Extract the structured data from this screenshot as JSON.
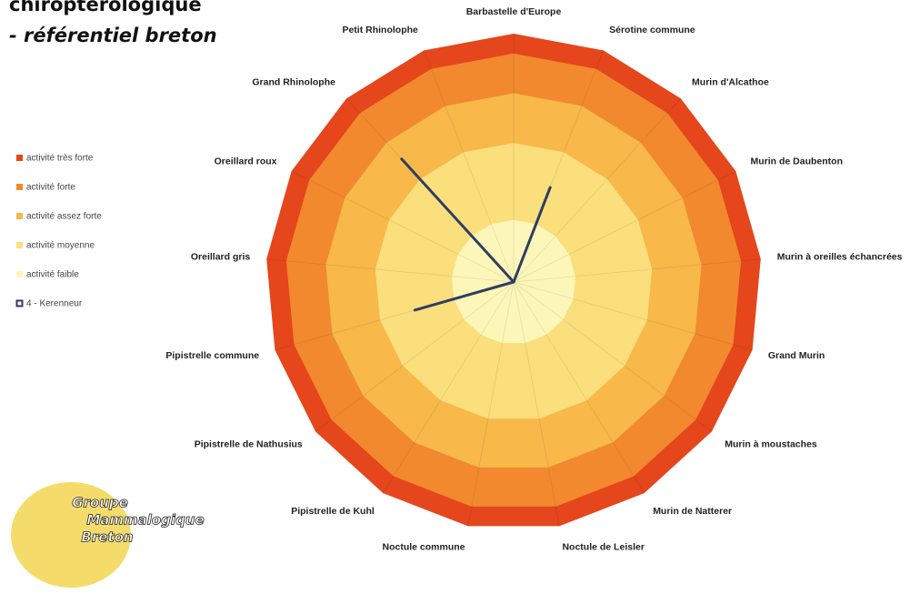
{
  "chart_data": {
    "type": "radar",
    "title": "chiroptérologique",
    "subtitle": "- référentiel breton",
    "categories": [
      "Barbastelle d'Europe",
      "Sérotine commune",
      "Murin d'Alcathoe",
      "Murin de Daubenton",
      "Murin à oreilles échancrées",
      "Grand Murin",
      "Murin à moustaches",
      "Murin de Natterer",
      "Noctule de Leisler",
      "Noctule commune",
      "Pipistrelle de Kuhl",
      "Pipistrelle de Nathusius",
      "Pipistrelle commune",
      "Oreillard gris",
      "Oreillard roux",
      "Grand Rhinolophe",
      "Petit Rhinolophe"
    ],
    "rlim": [
      0,
      5
    ],
    "series": [
      {
        "name": "activité très forte",
        "color": "#e5461b",
        "fill": true,
        "values": [
          5,
          5,
          5,
          5,
          5,
          5,
          5,
          5,
          5,
          5,
          5,
          5,
          5,
          5,
          5,
          5,
          5
        ]
      },
      {
        "name": "activité forte",
        "color": "#f2892e",
        "fill": true,
        "values": [
          4.6,
          4.6,
          4.6,
          4.6,
          4.6,
          4.6,
          4.6,
          4.6,
          4.6,
          4.6,
          4.6,
          4.6,
          4.6,
          4.6,
          4.6,
          4.6,
          4.6
        ]
      },
      {
        "name": "activité assez forte",
        "color": "#f8b84a",
        "fill": true,
        "values": [
          3.8,
          3.8,
          3.8,
          3.8,
          3.8,
          3.8,
          3.8,
          3.8,
          3.8,
          3.8,
          3.8,
          3.8,
          3.8,
          3.8,
          3.8,
          3.8,
          3.8
        ]
      },
      {
        "name": "activité moyenne",
        "color": "#fbdf7c",
        "fill": true,
        "values": [
          2.8,
          2.8,
          2.8,
          2.8,
          2.8,
          2.8,
          2.8,
          2.8,
          2.8,
          2.8,
          2.8,
          2.8,
          2.8,
          2.8,
          2.8,
          2.8,
          2.8
        ]
      },
      {
        "name": "activité faible",
        "color": "#fdf6b9",
        "fill": true,
        "values": [
          1.25,
          1.25,
          1.25,
          1.25,
          1.25,
          1.25,
          1.25,
          1.25,
          1.25,
          1.25,
          1.25,
          1.25,
          1.25,
          1.25,
          1.25,
          1.25,
          1.25
        ]
      },
      {
        "name": "4 - Kerenneur",
        "color": "#2e3e62",
        "fill": false,
        "values": [
          0,
          2.04,
          0,
          0,
          0,
          0,
          0,
          0,
          0,
          0,
          0,
          0,
          2.07,
          0,
          0,
          3.35,
          0
        ]
      }
    ],
    "logo_text": [
      "Groupe",
      "Mammalogique",
      "Breton"
    ]
  }
}
